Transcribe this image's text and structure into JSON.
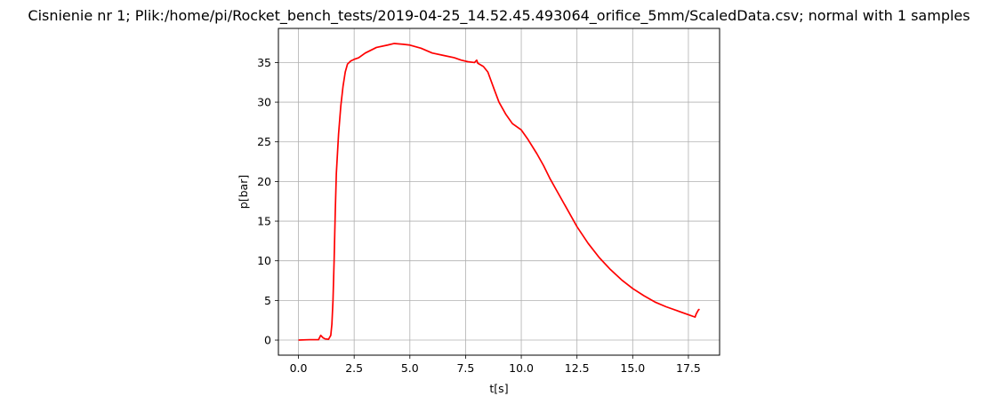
{
  "chart_data": {
    "type": "line",
    "title": "Cisnienie nr 1; Plik:/home/pi/Rocket_bench_tests/2019-04-25_14.52.45.493064_orifice_5mm/ScaledData.csv; normal with 1 samples",
    "xlabel": "t[s]",
    "ylabel": "p[bar]",
    "xlim": [
      -0.9,
      18.9
    ],
    "ylim": [
      -1.9,
      39.3
    ],
    "grid": true,
    "x_ticks": [
      0.0,
      2.5,
      5.0,
      7.5,
      10.0,
      12.5,
      15.0,
      17.5
    ],
    "x_tick_labels": [
      "0.0",
      "2.5",
      "5.0",
      "7.5",
      "10.0",
      "12.5",
      "15.0",
      "17.5"
    ],
    "y_ticks": [
      0,
      5,
      10,
      15,
      20,
      25,
      30,
      35
    ],
    "y_tick_labels": [
      "0",
      "5",
      "10",
      "15",
      "20",
      "25",
      "30",
      "35"
    ],
    "series": [
      {
        "color": "#ff0000",
        "points": [
          [
            0.0,
            0.0
          ],
          [
            0.5,
            0.05
          ],
          [
            0.9,
            0.05
          ],
          [
            1.0,
            0.6
          ],
          [
            1.1,
            0.3
          ],
          [
            1.2,
            0.15
          ],
          [
            1.35,
            0.1
          ],
          [
            1.45,
            0.6
          ],
          [
            1.5,
            2.0
          ],
          [
            1.55,
            5.0
          ],
          [
            1.6,
            10.0
          ],
          [
            1.65,
            16.0
          ],
          [
            1.7,
            21.0
          ],
          [
            1.8,
            26.0
          ],
          [
            1.9,
            29.5
          ],
          [
            2.0,
            32.0
          ],
          [
            2.1,
            33.8
          ],
          [
            2.2,
            34.8
          ],
          [
            2.35,
            35.2
          ],
          [
            2.5,
            35.4
          ],
          [
            2.7,
            35.6
          ],
          [
            3.0,
            36.2
          ],
          [
            3.5,
            36.9
          ],
          [
            4.0,
            37.2
          ],
          [
            4.3,
            37.4
          ],
          [
            4.7,
            37.3
          ],
          [
            5.0,
            37.2
          ],
          [
            5.5,
            36.8
          ],
          [
            6.0,
            36.2
          ],
          [
            6.5,
            35.9
          ],
          [
            7.0,
            35.6
          ],
          [
            7.3,
            35.3
          ],
          [
            7.6,
            35.1
          ],
          [
            7.9,
            35.0
          ],
          [
            8.0,
            35.3
          ],
          [
            8.05,
            34.9
          ],
          [
            8.3,
            34.5
          ],
          [
            8.5,
            33.8
          ],
          [
            8.8,
            31.5
          ],
          [
            9.0,
            30.0
          ],
          [
            9.3,
            28.5
          ],
          [
            9.6,
            27.3
          ],
          [
            10.0,
            26.5
          ],
          [
            10.3,
            25.3
          ],
          [
            10.7,
            23.5
          ],
          [
            11.0,
            22.0
          ],
          [
            11.3,
            20.3
          ],
          [
            11.6,
            18.8
          ],
          [
            12.0,
            16.8
          ],
          [
            12.5,
            14.3
          ],
          [
            13.0,
            12.2
          ],
          [
            13.5,
            10.4
          ],
          [
            14.0,
            8.9
          ],
          [
            14.5,
            7.6
          ],
          [
            15.0,
            6.5
          ],
          [
            15.5,
            5.6
          ],
          [
            16.0,
            4.8
          ],
          [
            16.5,
            4.2
          ],
          [
            17.0,
            3.7
          ],
          [
            17.5,
            3.2
          ],
          [
            17.8,
            2.9
          ],
          [
            17.85,
            3.3
          ],
          [
            17.95,
            3.8
          ],
          [
            18.0,
            3.9
          ]
        ]
      }
    ]
  }
}
